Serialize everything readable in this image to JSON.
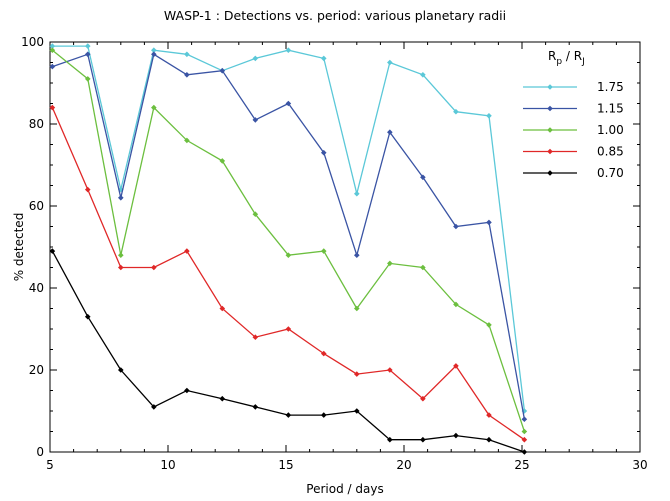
{
  "chart_data": {
    "type": "line",
    "title": "WASP-1 : Detections vs. period: various planetary radii",
    "xlabel": "Period / days",
    "ylabel": "% detected",
    "xlim": [
      5,
      30
    ],
    "ylim": [
      0,
      100
    ],
    "xticks": [
      "5",
      "10",
      "15",
      "20",
      "25",
      "30"
    ],
    "yticks": [
      "0",
      "20",
      "40",
      "60",
      "80",
      "100"
    ],
    "grid": false,
    "legend": {
      "title_main": "R",
      "title_sub_p": "p",
      "title_sep": " / R",
      "title_sub_j": "J",
      "placement": "top-right"
    },
    "x": [
      5.1,
      6.6,
      8.0,
      9.4,
      10.8,
      12.3,
      13.7,
      15.1,
      16.6,
      18.0,
      19.4,
      20.8,
      22.2,
      23.6,
      25.1
    ],
    "series": [
      {
        "name": "1.75",
        "color": "#5bc8d8",
        "values": [
          99,
          99,
          64,
          98,
          97,
          93,
          96,
          98,
          96,
          63,
          95,
          92,
          83,
          82,
          10
        ]
      },
      {
        "name": "1.15",
        "color": "#3a54a4",
        "values": [
          94,
          97,
          62,
          97,
          92,
          93,
          81,
          85,
          73,
          48,
          78,
          67,
          55,
          56,
          8
        ]
      },
      {
        "name": "1.00",
        "color": "#6cbf3f",
        "values": [
          98,
          91,
          48,
          84,
          76,
          71,
          58,
          48,
          49,
          35,
          46,
          45,
          36,
          31,
          5
        ]
      },
      {
        "name": "0.85",
        "color": "#e02828",
        "values": [
          84,
          64,
          45,
          45,
          49,
          35,
          28,
          30,
          24,
          19,
          20,
          13,
          21,
          9,
          3
        ]
      },
      {
        "name": "0.70",
        "color": "#000000",
        "values": [
          49,
          33,
          20,
          11,
          15,
          13,
          11,
          9,
          9,
          10,
          3,
          3,
          4,
          3,
          0
        ]
      }
    ]
  }
}
